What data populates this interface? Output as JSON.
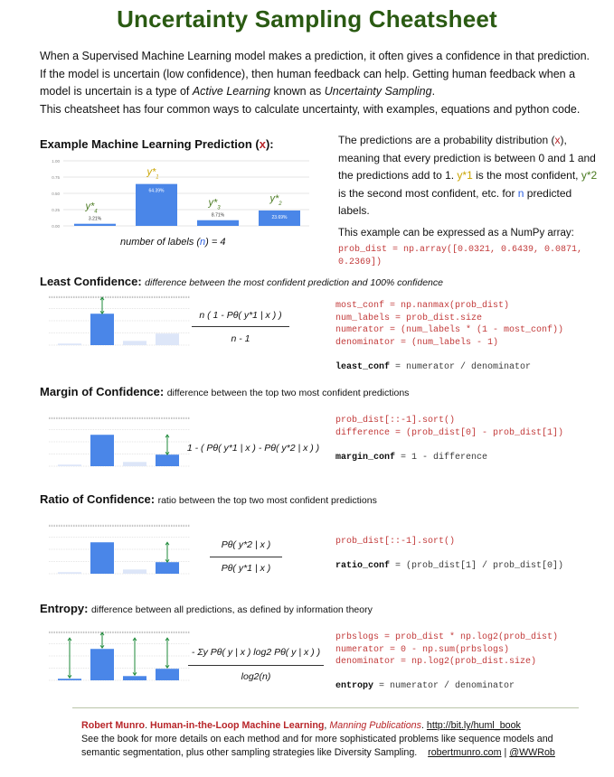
{
  "title": "Uncertainty Sampling Cheatsheet",
  "intro": {
    "line1": "When a Supervised Machine Learning model makes a prediction, it often gives a confidence in that prediction.",
    "line2": "If the model is uncertain (low confidence), then human feedback can help. Getting human feedback when a",
    "line3a": "model is uncertain is a type of ",
    "line3b": "Active Learning",
    "line3c": " known as ",
    "line3d": "Uncertainty Sampling",
    "line3e": ".",
    "line4": "This cheatsheet has four common ways to calculate uncertainty, with examples, equations and python code."
  },
  "example": {
    "heading": "Example Machine Learning Prediction (",
    "heading_x": "x",
    "heading_end": "):",
    "desc1a": "The predictions are a probability distribution (",
    "desc1b": "x",
    "desc1c": "),",
    "desc2": "meaning that every prediction is between 0 and 1 and",
    "desc3a": "the predictions add to 1. ",
    "desc3b": "y*1",
    "desc3c": " is the most confident, ",
    "desc3d": "y*2",
    "desc4a": "is the second most confident, etc. for ",
    "desc4b": "n",
    "desc4c": " predicted",
    "desc5": "labels.",
    "numpy_label": "This example can be expressed as a NumPy array:",
    "numpy_code1": "prob_dist = np.array([0.0321, 0.6439, 0.0871,",
    "numpy_code2": "0.2369])",
    "caption_a": "number of labels (",
    "caption_n": "n",
    "caption_b": ") = 4"
  },
  "chart_data": {
    "type": "bar",
    "categories": [
      "y*4",
      "y*1",
      "y*3",
      "y*2"
    ],
    "values": [
      0.0321,
      0.6439,
      0.0871,
      0.2369
    ],
    "data_labels": [
      "3.21%",
      "64.39%",
      "8.71%",
      "23.69%"
    ],
    "yticks": [
      "1.00",
      "0.75",
      "0.50",
      "0.25",
      "0.00"
    ],
    "ylim": [
      0,
      1
    ],
    "color": "#4a86e8",
    "label_colors": [
      "#4a7a20",
      "#c9a400",
      "#4a7a20",
      "#4a7a20"
    ]
  },
  "least": {
    "heading": "Least Confidence:",
    "sub": "difference between the most confident prediction and 100% confidence",
    "eqn_top": "n ( 1 - Pθ( y*1 | x ) )",
    "eqn_bottom": "n - 1",
    "code": [
      "most_conf = np.nanmax(prob_dist)",
      "num_labels = prob_dist.size",
      "numerator = (num_labels * (1 - most_conf))",
      "denominator = (num_labels - 1)"
    ],
    "result_var": "least_conf",
    "result_expr": " = numerator / denominator"
  },
  "margin": {
    "heading": "Margin of Confidence:",
    "sub": "difference between the top two most confident predictions",
    "eqn": "1 - ( Pθ( y*1 | x ) - Pθ( y*2 | x ) )",
    "code": [
      "prob_dist[::-1].sort()",
      "difference = (prob_dist[0] - prob_dist[1])"
    ],
    "result_var": "margin_conf",
    "result_expr": " = 1 - difference"
  },
  "ratio": {
    "heading": "Ratio of Confidence:",
    "sub": "ratio between the top two most confident predictions",
    "eqn_top": "Pθ( y*2 | x )",
    "eqn_bottom": "Pθ( y*1 | x )",
    "code": [
      "prob_dist[::-1].sort()"
    ],
    "result_var": "ratio_conf",
    "result_expr": " = (prob_dist[1] / prob_dist[0])"
  },
  "entropy": {
    "heading": "Entropy:",
    "sub": "difference between all predictions, as defined by information theory",
    "eqn_top": "- Σy Pθ( y | x ) log2 Pθ( y | x ) )",
    "eqn_bottom": "log2(n)",
    "code": [
      "prbslogs = prob_dist * np.log2(prob_dist)",
      "numerator = 0 - np.sum(prbslogs)",
      "denominator = np.log2(prob_dist.size)"
    ],
    "result_var": "entropy",
    "result_expr": " = numerator / denominator"
  },
  "footer": {
    "author": "Robert Munro",
    "book": "Human-in-the-Loop Machine Learning",
    "publisher": "Manning Publications",
    "url": "http://bit.ly/huml_book",
    "line2": "See the book for more details on each method and for more sophisticated problems like sequence models and",
    "line3": "semantic segmentation, plus other sampling strategies like Diversity Sampling.",
    "site": "robertmunro.com",
    "sep": " | ",
    "twitter": "@WWRob"
  }
}
